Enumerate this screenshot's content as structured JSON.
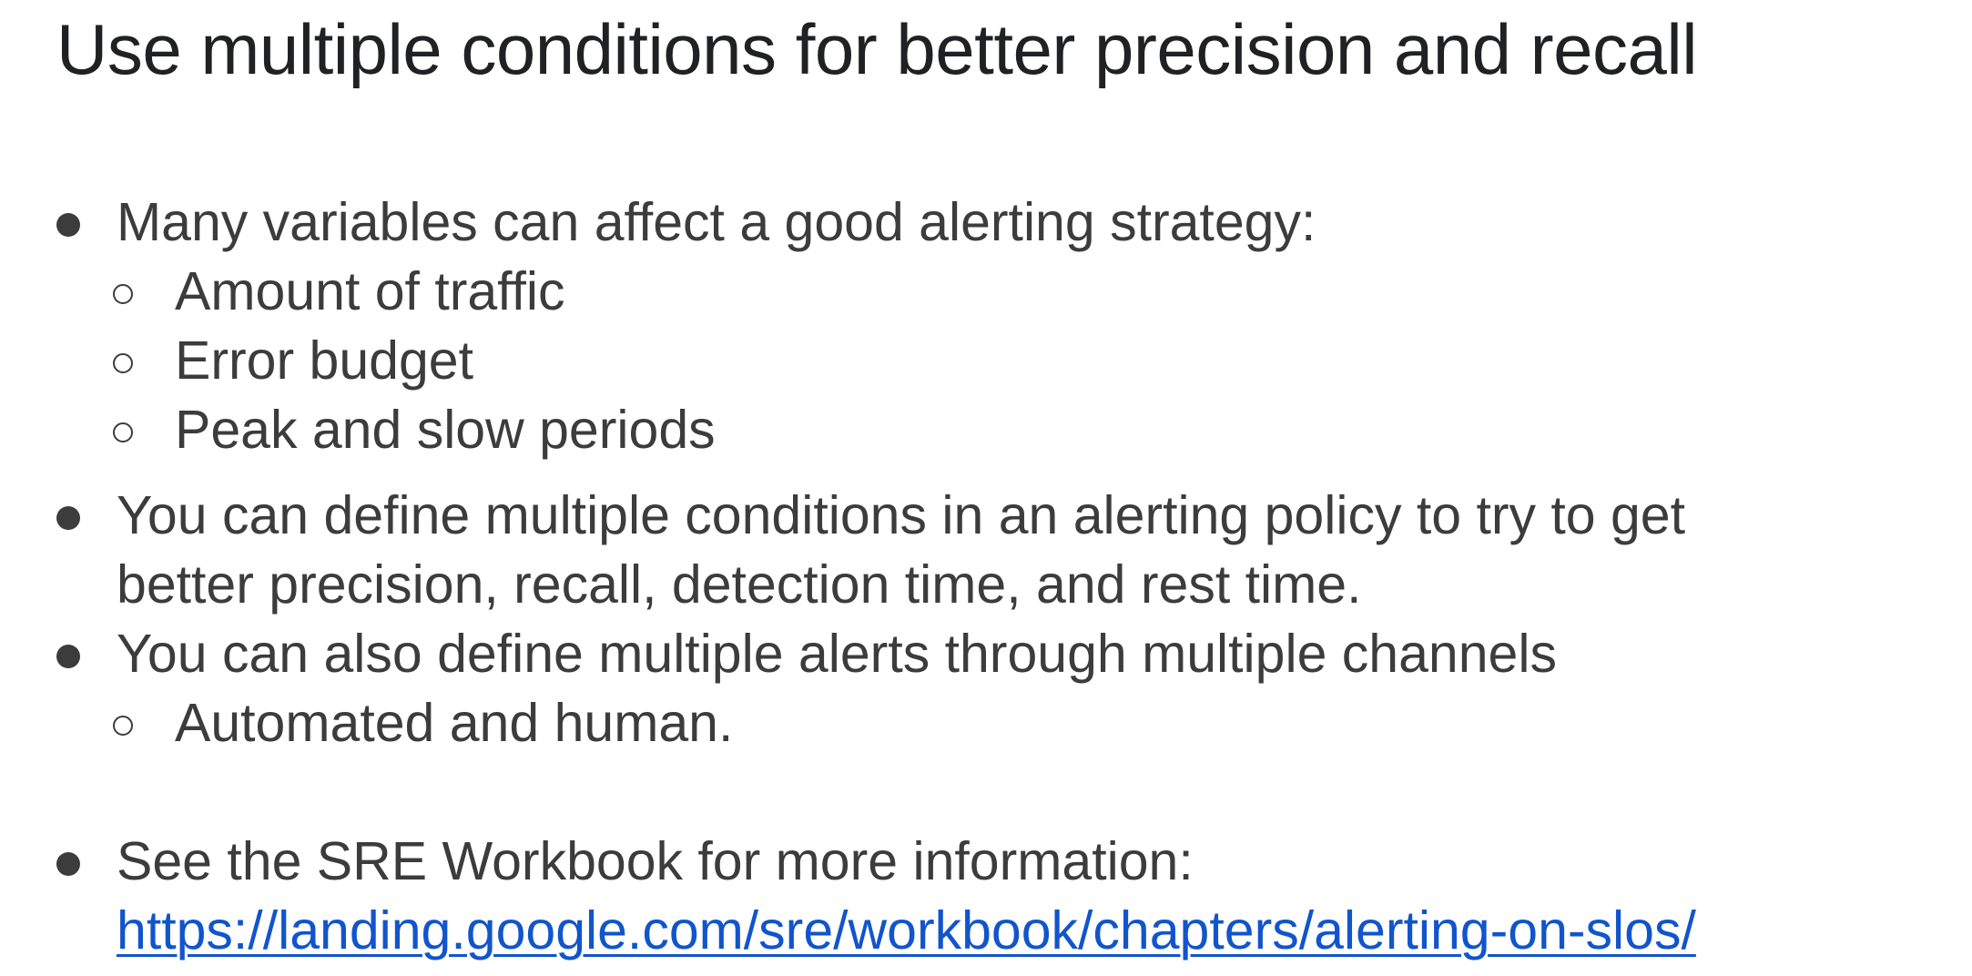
{
  "slide": {
    "title": "Use multiple conditions for better precision and recall",
    "bullets": [
      {
        "text": "Many variables can affect a good alerting strategy:",
        "sub": [
          "Amount of traffic",
          "Error budget",
          "Peak and slow periods"
        ]
      },
      {
        "line1": "You can define multiple conditions in an alerting policy to try to get",
        "line2": "better precision, recall, detection time, and rest time."
      },
      {
        "text": "You can also define multiple alerts through multiple channels",
        "sub": [
          "Automated and human."
        ]
      },
      {
        "text": "See the SRE Workbook for more information:",
        "link": "https://landing.google.com/sre/workbook/chapters/alerting-on-slos/"
      }
    ]
  },
  "colors": {
    "text": "#3c3c3c",
    "title": "#202124",
    "link": "#1155cc"
  }
}
